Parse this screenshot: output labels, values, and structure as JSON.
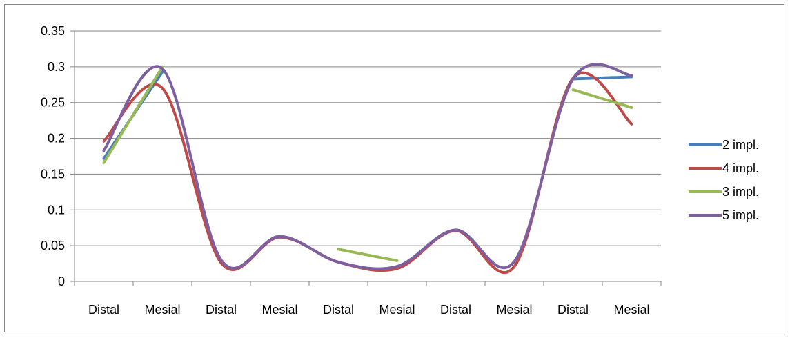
{
  "chart_data": {
    "type": "line",
    "categories": [
      "Distal",
      "Mesial",
      "Distal",
      "Mesial",
      "Distal",
      "Mesial",
      "Distal",
      "Mesial",
      "Distal",
      "Mesial"
    ],
    "ylim": [
      0,
      0.35
    ],
    "yticks": [
      "0",
      "0.05",
      "0.1",
      "0.15",
      "0.2",
      "0.25",
      "0.3",
      "0.35"
    ],
    "grid": true,
    "legend": "right",
    "series": [
      {
        "name": "2 impl.",
        "color": "#4a7ebb",
        "values": [
          0.172,
          0.293,
          null,
          null,
          null,
          null,
          null,
          null,
          0.283,
          0.286
        ]
      },
      {
        "name": "4 impl.",
        "color": "#be4b48",
        "values": [
          0.196,
          0.27,
          0.026,
          0.062,
          0.027,
          0.018,
          0.071,
          0.021,
          0.284,
          0.22
        ]
      },
      {
        "name": "3 impl.",
        "color": "#98b954",
        "values": [
          0.166,
          0.3,
          null,
          null,
          0.045,
          0.029,
          null,
          null,
          0.268,
          0.243
        ]
      },
      {
        "name": "5 impl.",
        "color": "#7d60a0",
        "values": [
          0.183,
          0.297,
          0.03,
          0.063,
          0.027,
          0.021,
          0.072,
          0.028,
          0.283,
          0.288
        ]
      }
    ]
  }
}
